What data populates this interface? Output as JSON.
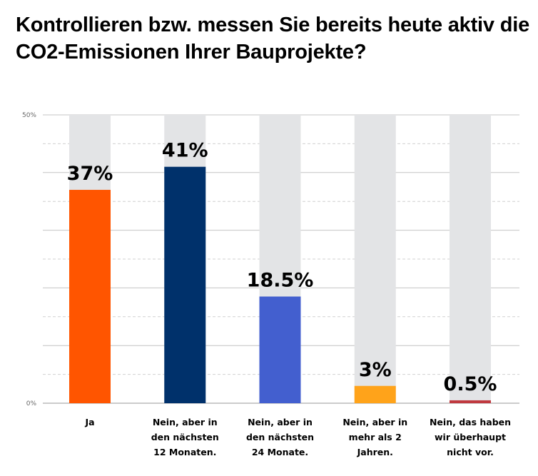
{
  "title": "Kontrollieren bzw. messen Sie bereits heute aktiv die CO2-Emissionen Ihrer Bauprojekte?",
  "chart_data": {
    "type": "bar",
    "title": "Kontrollieren bzw. messen Sie bereits heute aktiv die CO2-Emissionen Ihrer Bauprojekte?",
    "xlabel": "",
    "ylabel": "",
    "ylim": [
      0,
      50
    ],
    "y_ticks": [
      "0%",
      "50%"
    ],
    "grid": true,
    "legend": "none",
    "categories": [
      [
        "Ja"
      ],
      [
        "Nein, aber in",
        "den nächsten",
        "12 Monaten."
      ],
      [
        "Nein, aber in",
        "den nächsten",
        "24 Monate."
      ],
      [
        "Nein, aber in",
        "mehr als 2",
        "Jahren."
      ],
      [
        "Nein, das haben",
        "wir überhaupt",
        "nicht vor."
      ]
    ],
    "values": [
      37,
      41,
      18.5,
      3,
      0.5
    ],
    "value_labels": [
      "37%",
      "41%",
      "18.5%",
      "3%",
      "0.5%"
    ],
    "colors": [
      "#ff5500",
      "#00316b",
      "#435fcf",
      "#ffa31a",
      "#c0393f"
    ],
    "background_bar_color": "#e3e4e6"
  }
}
